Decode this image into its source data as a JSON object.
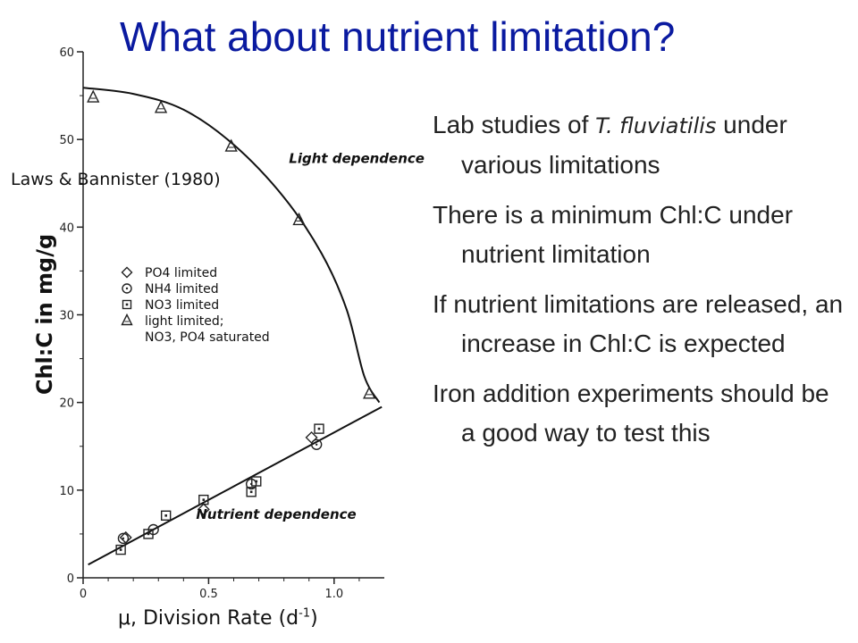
{
  "slide": {
    "title": "What about nutrient limitation?",
    "citation": "Laws & Bannister (1980)",
    "x_caption": "μ, Division Rate (d",
    "x_caption_sup": "-1",
    "x_caption_end": ")",
    "bullets": [
      {
        "pre": "Lab studies of ",
        "italic": "T. fluviatilis",
        "post": " under various limitations"
      },
      {
        "pre": "There is a minimum Chl:C under nutrient limitation",
        "italic": "",
        "post": ""
      },
      {
        "pre": "If nutrient limitations are released, an increase in Chl:C is expected",
        "italic": "",
        "post": ""
      },
      {
        "pre": "Iron addition experiments should be a good way to test this",
        "italic": "",
        "post": ""
      }
    ]
  },
  "chart_data": {
    "type": "scatter",
    "ylabel": "Chl:C in mg/g",
    "xlim": [
      0,
      1.2
    ],
    "ylim": [
      0,
      60
    ],
    "xticks": [
      0,
      0.5,
      1.0
    ],
    "xtick_labels": [
      "0",
      "0.5",
      "1.0"
    ],
    "yticks": [
      0,
      10,
      20,
      30,
      40,
      50,
      60
    ],
    "ytick_labels": [
      "0",
      "10",
      "20",
      "30",
      "40",
      "50",
      "60"
    ],
    "grid": false,
    "legend_position": "center-left",
    "legend": [
      {
        "marker": "diamond",
        "label": "PO4 limited"
      },
      {
        "marker": "circle",
        "label": "NH4 limited"
      },
      {
        "marker": "square",
        "label": "NO3 limited"
      },
      {
        "marker": "triangle",
        "label": "light limited; NO3, PO4 saturated"
      }
    ],
    "annotations": [
      {
        "text": "Light dependence",
        "x": 0.82,
        "y": 47.3
      },
      {
        "text": "Nutrient dependence",
        "x": 0.45,
        "y": 6.7
      }
    ],
    "series": [
      {
        "name": "PO4 limited",
        "marker": "diamond",
        "points": [
          [
            0.17,
            4.6
          ],
          [
            0.48,
            7.8
          ],
          [
            0.91,
            16.0
          ]
        ]
      },
      {
        "name": "NH4 limited",
        "marker": "circle",
        "points": [
          [
            0.16,
            4.5
          ],
          [
            0.28,
            5.5
          ],
          [
            0.67,
            10.7
          ],
          [
            0.93,
            15.2
          ]
        ]
      },
      {
        "name": "NO3 limited",
        "marker": "square",
        "points": [
          [
            0.15,
            3.2
          ],
          [
            0.33,
            7.1
          ],
          [
            0.48,
            8.9
          ],
          [
            0.69,
            11.0
          ],
          [
            0.94,
            17.0
          ],
          [
            0.26,
            5.0
          ],
          [
            0.67,
            9.8
          ]
        ]
      },
      {
        "name": "light limited; NO3, PO4 saturated",
        "marker": "triangle",
        "points": [
          [
            0.04,
            54.8
          ],
          [
            0.31,
            53.6
          ],
          [
            0.59,
            49.2
          ],
          [
            0.86,
            40.8
          ],
          [
            1.14,
            21.0
          ]
        ]
      }
    ],
    "fit_lines": [
      {
        "label": "Light dependence",
        "points": [
          [
            0.0,
            55.9
          ],
          [
            0.2,
            55.2
          ],
          [
            0.4,
            53.4
          ],
          [
            0.6,
            49.4
          ],
          [
            0.8,
            43.4
          ],
          [
            0.95,
            37.0
          ],
          [
            1.05,
            30.6
          ],
          [
            1.12,
            23.0
          ],
          [
            1.18,
            20.0
          ]
        ]
      },
      {
        "label": "Nutrient dependence",
        "points": [
          [
            0.02,
            1.5
          ],
          [
            1.19,
            19.5
          ]
        ]
      }
    ]
  }
}
